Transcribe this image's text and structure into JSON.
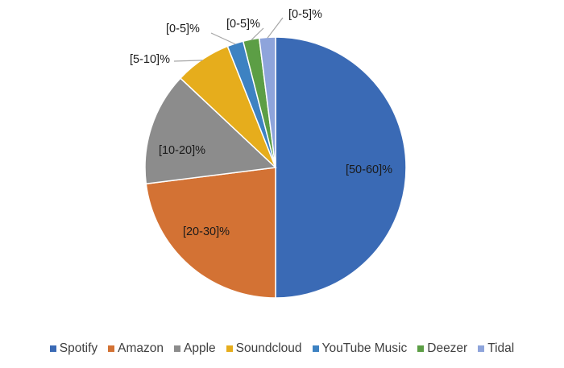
{
  "chart_data": {
    "type": "pie",
    "title": "",
    "categories": [
      "Spotify",
      "Amazon",
      "Apple",
      "Soundcloud",
      "YouTube Music",
      "Deezer",
      "Tidal"
    ],
    "values": [
      50,
      23,
      14,
      7,
      2,
      2,
      2
    ],
    "data_labels": [
      "[50-60]%",
      "[20-30]%",
      "[10-20]%",
      "[5-10]%",
      "[0-5]%",
      "[0-5]%",
      "[0-5]%"
    ],
    "colors": [
      "#3a6ab5",
      "#d37234",
      "#8c8c8c",
      "#e6ad1c",
      "#3d82c2",
      "#5c9e45",
      "#8ea4db"
    ],
    "legend_position": "bottom",
    "start_angle_deg": 0,
    "direction": "clockwise"
  }
}
